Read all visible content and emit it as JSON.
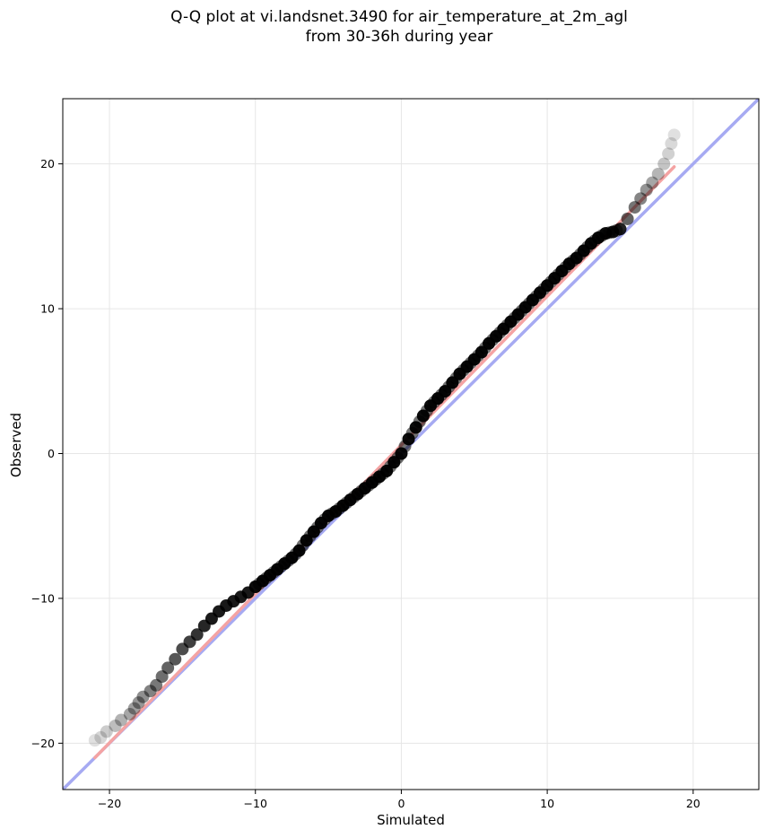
{
  "chart_data": {
    "type": "scatter",
    "title_line1": "Q-Q plot at vi.landsnet.3490 for air_temperature_at_2m_agl",
    "title_line2": "from 30-36h during year",
    "xlabel": "Simulated",
    "ylabel": "Observed",
    "xlim": [
      -23.2,
      24.5
    ],
    "ylim": [
      -23.2,
      24.5
    ],
    "xticks": [
      -20,
      -10,
      0,
      10,
      20
    ],
    "yticks": [
      -20,
      -10,
      0,
      10,
      20
    ],
    "xtick_labels": [
      "−20",
      "−10",
      "0",
      "10",
      "20"
    ],
    "ytick_labels": [
      "−20",
      "−10",
      "0",
      "10",
      "20"
    ],
    "grid": true,
    "series": [
      {
        "role": "quantiles",
        "color": "#000000",
        "x": [
          -21.0,
          -20.6,
          -20.2,
          -19.6,
          -19.2,
          -18.6,
          -18.3,
          -18.0,
          -17.7,
          -17.2,
          -16.8,
          -16.4,
          -16.0,
          -15.5,
          -15.0,
          -14.5,
          -14.0,
          -13.5,
          -13.0,
          -12.5,
          -12.0,
          -11.5,
          -11.0,
          -10.5,
          -10.0,
          -9.5,
          -9.0,
          -8.5,
          -8.0,
          -7.5,
          -7.0,
          -6.5,
          -6.0,
          -5.5,
          -5.0,
          -4.5,
          -4.0,
          -3.5,
          -3.0,
          -2.5,
          -2.0,
          -1.5,
          -1.0,
          -0.5,
          0.0,
          0.5,
          1.0,
          1.5,
          2.0,
          2.5,
          3.0,
          3.5,
          4.0,
          4.5,
          5.0,
          5.5,
          6.0,
          6.5,
          7.0,
          7.5,
          8.0,
          8.5,
          9.0,
          9.5,
          10.0,
          10.5,
          11.0,
          11.5,
          12.0,
          12.5,
          13.0,
          13.5,
          14.0,
          14.5,
          15.0,
          15.5,
          16.0,
          16.4,
          16.8,
          17.2,
          17.6,
          18.0,
          18.3,
          18.5,
          18.7
        ],
        "y": [
          -19.8,
          -19.6,
          -19.2,
          -18.8,
          -18.4,
          -18.0,
          -17.6,
          -17.2,
          -16.8,
          -16.4,
          -16.0,
          -15.4,
          -14.8,
          -14.2,
          -13.5,
          -13.0,
          -12.5,
          -11.9,
          -11.4,
          -10.9,
          -10.5,
          -10.2,
          -9.9,
          -9.6,
          -9.2,
          -8.8,
          -8.4,
          -8.0,
          -7.6,
          -7.2,
          -6.7,
          -6.0,
          -5.4,
          -4.8,
          -4.3,
          -4.0,
          -3.6,
          -3.2,
          -2.8,
          -2.4,
          -2.0,
          -1.6,
          -1.2,
          -0.6,
          0.0,
          1.0,
          1.8,
          2.6,
          3.3,
          3.8,
          4.3,
          4.9,
          5.5,
          6.0,
          6.5,
          7.0,
          7.6,
          8.1,
          8.6,
          9.1,
          9.6,
          10.1,
          10.6,
          11.1,
          11.6,
          12.1,
          12.6,
          13.1,
          13.5,
          14.0,
          14.5,
          14.9,
          15.2,
          15.3,
          15.5,
          16.2,
          17.0,
          17.6,
          18.2,
          18.7,
          19.3,
          20.0,
          20.7,
          21.4,
          22.0
        ]
      },
      {
        "role": "fit",
        "color": "#f4a3a3",
        "x": [
          -21.0,
          18.7
        ],
        "y": [
          -21.0,
          19.8
        ]
      },
      {
        "role": "one-to-one",
        "color": "#a6aaf2",
        "x": [
          -23.2,
          24.5
        ],
        "y": [
          -23.2,
          24.5
        ]
      }
    ]
  }
}
